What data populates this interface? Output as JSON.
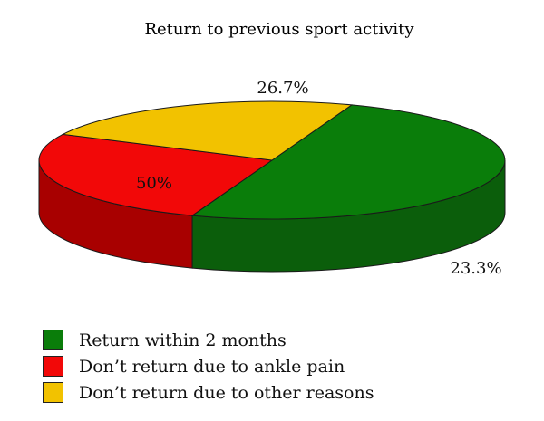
{
  "chart_data": {
    "type": "pie",
    "title": "Return to previous sport activity",
    "slices": [
      {
        "name": "Return within 2 months",
        "value": 50,
        "label": "50%",
        "color": "#0a7d0a",
        "side_color": "#0b5e0b"
      },
      {
        "name": "Don’t return due to ankle pain",
        "value": 26.7,
        "label": "26.7%",
        "color": "#f20808",
        "side_color": "#a80000"
      },
      {
        "name": "Don’t return due to other reasons",
        "value": 23.3,
        "label": "23.3%",
        "color": "#f2c200",
        "side_color": "#6e5a06"
      }
    ],
    "view_angle": "3d-tilted",
    "legend_position": "bottom-left"
  }
}
